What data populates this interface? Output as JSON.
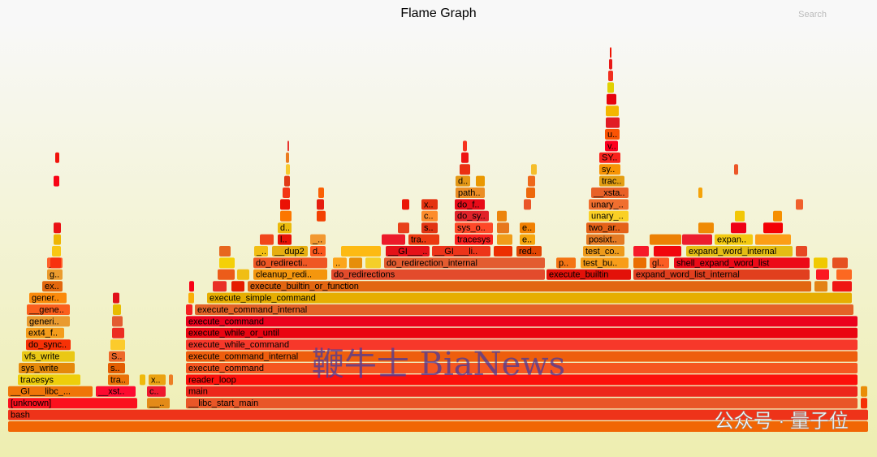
{
  "header": {
    "title": "Flame Graph",
    "search": "Search"
  },
  "watermarks": [
    "鞭牛士 BiaNews",
    "公众号 · 量子位"
  ],
  "frames": [
    "bash",
    "[unknown]",
    "__libc_start_main",
    "main",
    "reader_loop",
    "execute_command",
    "execute_command_internal",
    "execute_while_command",
    "execute_while_or_until",
    "execute_command",
    "execute_command_internal",
    "execute_simple_command",
    "execute_builtin_or_function",
    "cleanup_redi..",
    "do_redirections",
    "execute_builtin",
    "expand_word_list_internal",
    "do_redirecti..",
    "..",
    "do_redirection_internal",
    "p..",
    "test_bu..",
    "gl..",
    "shell_expand_word_list",
    "_..",
    "__dup2",
    "d..",
    "__GI___..",
    "__GI___li..",
    "red..",
    "test_co..",
    "expand_word_internal",
    "l..",
    "_..",
    "tra..",
    "tracesys",
    "e..",
    "posixt..",
    "expan..",
    "d..",
    "sys_o..",
    "s..",
    "e..",
    "two_ar..",
    "c..",
    "do_sy..",
    "unary_..",
    "x..",
    "do_f..",
    "unary_..",
    "path..",
    "__xsta..",
    "d..",
    "trac..",
    "sy..",
    "SY..",
    "v..",
    "u..",
    "__GI___libc_...",
    "__xst..",
    "c..",
    "__..",
    "tracesys",
    "tra..",
    "x..",
    "sys_write",
    "s..",
    "vfs_write",
    "S..",
    "do_sync..",
    "ext4_f..",
    "generi..",
    "__gene..",
    "gener..",
    "ex..",
    "g..",
    "_.."
  ]
}
